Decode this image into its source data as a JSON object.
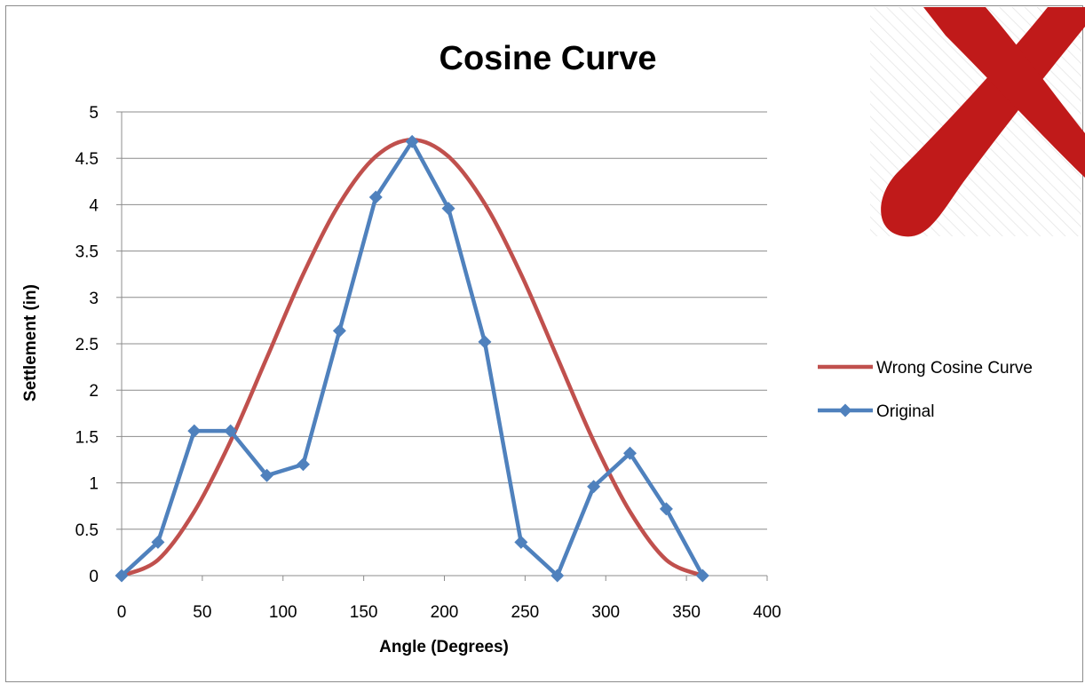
{
  "chart_data": {
    "type": "line",
    "title": "Cosine Curve",
    "xlabel": "Angle (Degrees)",
    "ylabel": "Settlement (in)",
    "xlim": [
      0,
      400
    ],
    "ylim": [
      0,
      5
    ],
    "x_ticks": [
      0,
      50,
      100,
      150,
      200,
      250,
      300,
      350,
      400
    ],
    "y_ticks": [
      0,
      0.5,
      1,
      1.5,
      2,
      2.5,
      3,
      3.5,
      4,
      4.5,
      5
    ],
    "grid": "horizontal",
    "legend_position": "right",
    "series": [
      {
        "name": "Wrong Cosine Curve",
        "color": "#c0504d",
        "marker": "none",
        "smooth": true,
        "x": [
          0,
          22.5,
          45,
          67.5,
          90,
          112.5,
          135,
          157.5,
          180,
          202.5,
          225,
          247.5,
          270,
          292.5,
          315,
          337.5,
          360
        ],
        "y": [
          0,
          0.17,
          0.69,
          1.45,
          2.35,
          3.25,
          4.01,
          4.52,
          4.7,
          4.52,
          4.01,
          3.25,
          2.35,
          1.45,
          0.69,
          0.17,
          0
        ]
      },
      {
        "name": "Original",
        "color": "#4f81bd",
        "marker": "diamond",
        "smooth": false,
        "x": [
          0,
          22.5,
          45,
          67.5,
          90,
          112.5,
          135,
          157.5,
          180,
          202.5,
          225,
          247.5,
          270,
          292.5,
          315,
          337.5,
          360
        ],
        "y": [
          0,
          0.36,
          1.56,
          1.56,
          1.08,
          1.2,
          2.64,
          4.08,
          4.68,
          3.96,
          2.52,
          0.36,
          0,
          0.96,
          1.32,
          0.72,
          0
        ]
      }
    ]
  },
  "overlay": {
    "icon": "red-x-cross-icon",
    "color": "#c01a1a"
  }
}
